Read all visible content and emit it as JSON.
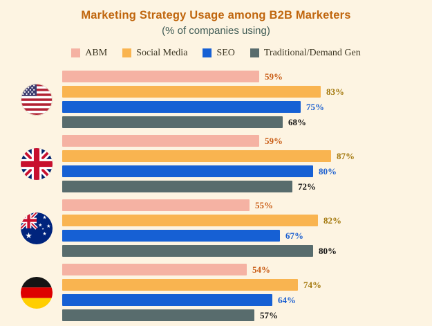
{
  "title": "Marketing Strategy Usage among B2B Marketers",
  "subtitle": "(% of companies using)",
  "colors": {
    "background": "#fdf4e2",
    "title": "#c0660e",
    "subtitle": "#3f5b55"
  },
  "legend": [
    {
      "label": "ABM",
      "color": "#f5b2a3",
      "value_color": "#c85a12"
    },
    {
      "label": "Social Media",
      "color": "#f9b450",
      "value_color": "#a3780c"
    },
    {
      "label": "SEO",
      "color": "#1660d4",
      "value_color": "#1b5fd0"
    },
    {
      "label": "Traditional/Demand Gen",
      "color": "#586c6d",
      "value_color": "#111111"
    }
  ],
  "chart_data": {
    "type": "bar",
    "orientation": "horizontal",
    "title": "Marketing Strategy Usage among B2B Marketers",
    "subtitle": "(% of companies using)",
    "categories": [
      "United States",
      "United Kingdom",
      "Australia",
      "Germany"
    ],
    "category_flags": [
      "us",
      "uk",
      "au",
      "de"
    ],
    "series": [
      {
        "name": "ABM",
        "values": [
          59,
          59,
          55,
          54
        ]
      },
      {
        "name": "Social Media",
        "values": [
          83,
          87,
          82,
          74
        ]
      },
      {
        "name": "SEO",
        "values": [
          75,
          80,
          67,
          64
        ]
      },
      {
        "name": "Traditional/Demand Gen",
        "values": [
          68,
          72,
          80,
          57
        ]
      }
    ],
    "value_suffix": "%",
    "xlim": [
      0,
      100
    ],
    "grid": false,
    "legend_position": "top",
    "value_labels": "end-of-bar"
  }
}
